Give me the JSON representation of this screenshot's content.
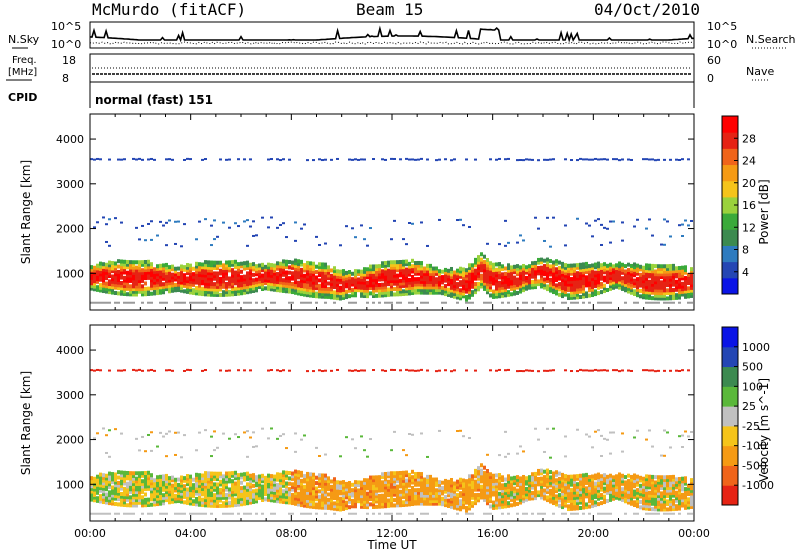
{
  "title": {
    "station": "McMurdo (fitACF)",
    "beam": "Beam 15",
    "date": "04/Oct/2010"
  },
  "noise_panel": {
    "left_label": "N.Sky",
    "right_label": "N.Search",
    "left_ticks": [
      "10^5",
      "10^0"
    ],
    "right_ticks": [
      "10^5",
      "10^0"
    ]
  },
  "freq_panel": {
    "left_label_1": "Freq.",
    "left_label_2": "[MHz]",
    "right_label": "Nave",
    "left_ticks": [
      "18",
      "8"
    ],
    "right_ticks": [
      "60",
      "0"
    ]
  },
  "cpid_panel": {
    "label": "CPID",
    "value": "normal (fast) 151"
  },
  "colors": {
    "power_scale": [
      "#0a14e6",
      "#2446b4",
      "#2e7bbf",
      "#3c8a50",
      "#3aaa3a",
      "#9ad23c",
      "#f5c41a",
      "#f59a14",
      "#f0641a",
      "#e62314",
      "#ff0000"
    ],
    "velocity_scale": [
      "#0a14e6",
      "#2446b4",
      "#3c8a50",
      "#5ab83a",
      "#c0c0c0",
      "#f5c41a",
      "#f59a14",
      "#f0641a",
      "#e62314"
    ]
  },
  "chart_data": [
    {
      "type": "heatmap",
      "name": "Power",
      "ylabel": "Slant Range [km]",
      "y_ticks": [
        1000,
        2000,
        3000,
        4000
      ],
      "ylim": [
        180,
        4560
      ],
      "x_ticks": [
        "00:00",
        "04:00",
        "08:00",
        "12:00",
        "16:00",
        "20:00",
        "00:00"
      ],
      "xlim_hours": [
        0,
        24
      ],
      "colorbar_label": "Power [dB]",
      "colorbar_ticks": [
        "4",
        "8",
        "12",
        "16",
        "20",
        "24",
        "28"
      ],
      "colorbar_range": [
        0,
        32
      ],
      "band_center_km": [
        [
          0,
          880
        ],
        [
          2,
          860
        ],
        [
          4,
          840
        ],
        [
          6,
          860
        ],
        [
          8,
          900
        ],
        [
          9.5,
          780
        ],
        [
          10,
          700
        ],
        [
          11,
          760
        ],
        [
          12,
          860
        ],
        [
          13,
          880
        ],
        [
          14,
          780
        ],
        [
          15,
          720
        ],
        [
          15.6,
          1050
        ],
        [
          16,
          800
        ],
        [
          17,
          820
        ],
        [
          18,
          980
        ],
        [
          19,
          780
        ],
        [
          20,
          820
        ],
        [
          21,
          920
        ],
        [
          22,
          780
        ],
        [
          24,
          760
        ]
      ]
    },
    {
      "type": "heatmap",
      "name": "Velocity",
      "ylabel": "Slant Range [km]",
      "y_ticks": [
        1000,
        2000,
        3000,
        4000
      ],
      "ylim": [
        180,
        4560
      ],
      "x_ticks": [
        "00:00",
        "04:00",
        "08:00",
        "12:00",
        "16:00",
        "20:00",
        "00:00"
      ],
      "xlim_hours": [
        0,
        24
      ],
      "xlabel": "Time UT",
      "colorbar_label": "Velocity [m s^-1]",
      "colorbar_ticks": [
        "1000",
        "500",
        "100",
        "25",
        "-25",
        "-100",
        "-500",
        "-1000"
      ]
    }
  ]
}
